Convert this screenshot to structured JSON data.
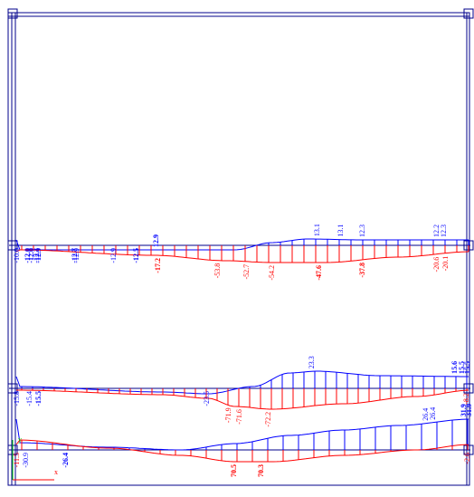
{
  "colors": {
    "positive": "#0000ff",
    "negative": "#ff0000",
    "frame": "#00008b",
    "axis_y": "#00cc00",
    "axis_x": "#ff0000",
    "background": "#ffffff"
  },
  "axis": {
    "y_label": "y",
    "x_label": "x"
  },
  "beams": [
    {
      "id": "beam-top",
      "labels_blue": [
        {
          "t": "-10.0",
          "bold": false
        },
        {
          "t": "-12.0",
          "bold": true
        },
        {
          "t": "-12.0",
          "bold": true
        },
        {
          "t": "-12.3",
          "bold": true
        },
        {
          "t": "-12.9",
          "bold": true
        },
        {
          "t": "-12.7",
          "bold": true
        },
        {
          "t": "-12.9",
          "bold": false
        },
        {
          "t": "-12.9",
          "bold": false
        },
        {
          "t": "-12.5",
          "bold": true
        },
        {
          "t": "12.9",
          "bold": true
        },
        {
          "t": "13.1",
          "bold": false
        },
        {
          "t": "13.1",
          "bold": false
        },
        {
          "t": "12.3",
          "bold": false
        },
        {
          "t": "12.2",
          "bold": false
        },
        {
          "t": "12.3",
          "bold": false
        }
      ],
      "labels_red": [
        {
          "t": "-17.2",
          "bold": true
        },
        {
          "t": "-53.8",
          "bold": false
        },
        {
          "t": "-52.7",
          "bold": false
        },
        {
          "t": "-54.2",
          "bold": false
        },
        {
          "t": "-47.6",
          "bold": true
        },
        {
          "t": "-37.8",
          "bold": true
        },
        {
          "t": "-20.6",
          "bold": false
        },
        {
          "t": "-20.1",
          "bold": false
        }
      ]
    },
    {
      "id": "beam-middle",
      "labels_blue": [
        {
          "t": "-15.8",
          "bold": false
        },
        {
          "t": "-15.4",
          "bold": false
        },
        {
          "t": "-15.5",
          "bold": true
        },
        {
          "t": "-23.5",
          "bold": false
        },
        {
          "t": "23.3",
          "bold": false
        },
        {
          "t": "15.6",
          "bold": true
        },
        {
          "t": "15.5",
          "bold": true
        },
        {
          "t": "15.5",
          "bold": true
        }
      ],
      "labels_red": [
        {
          "t": "-71.9",
          "bold": false
        },
        {
          "t": "-71.6",
          "bold": false
        },
        {
          "t": "-72.2",
          "bold": false
        },
        {
          "t": "-8.2",
          "bold": false
        }
      ]
    },
    {
      "id": "beam-bottom",
      "labels_blue": [
        {
          "t": "-30.9",
          "bold": false
        },
        {
          "t": "-26.4",
          "bold": true
        },
        {
          "t": "26.4",
          "bold": false
        },
        {
          "t": "26.4",
          "bold": false
        },
        {
          "t": "31.9",
          "bold": true
        },
        {
          "t": "31.9",
          "bold": true
        }
      ],
      "labels_red": [
        {
          "t": "-11.5",
          "bold": false
        },
        {
          "t": "70.5",
          "bold": true
        },
        {
          "t": "70.3",
          "bold": true
        },
        {
          "t": "-2.6",
          "bold": false
        }
      ]
    }
  ]
}
